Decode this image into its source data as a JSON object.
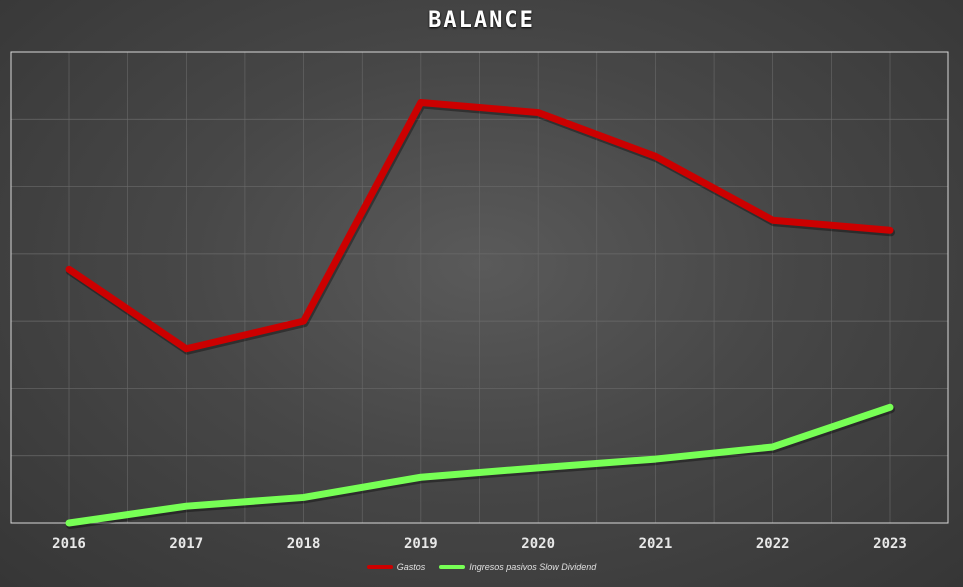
{
  "chart_data": {
    "type": "line",
    "title": "BALANCE",
    "categories": [
      "2016",
      "2017",
      "2018",
      "2019",
      "2020",
      "2021",
      "2022",
      "2023"
    ],
    "ylim": [
      0,
      7
    ],
    "grid": true,
    "legend_position": "bottom",
    "series": [
      {
        "name": "Gastos",
        "color": "#cc0000",
        "values": [
          3.77,
          2.59,
          3.0,
          6.25,
          6.1,
          5.45,
          4.5,
          4.35
        ]
      },
      {
        "name": "Ingresos pasivos Slow Dividend",
        "color": "#77ff55",
        "values": [
          0.0,
          0.25,
          0.38,
          0.68,
          0.82,
          0.95,
          1.13,
          1.72
        ]
      }
    ]
  }
}
